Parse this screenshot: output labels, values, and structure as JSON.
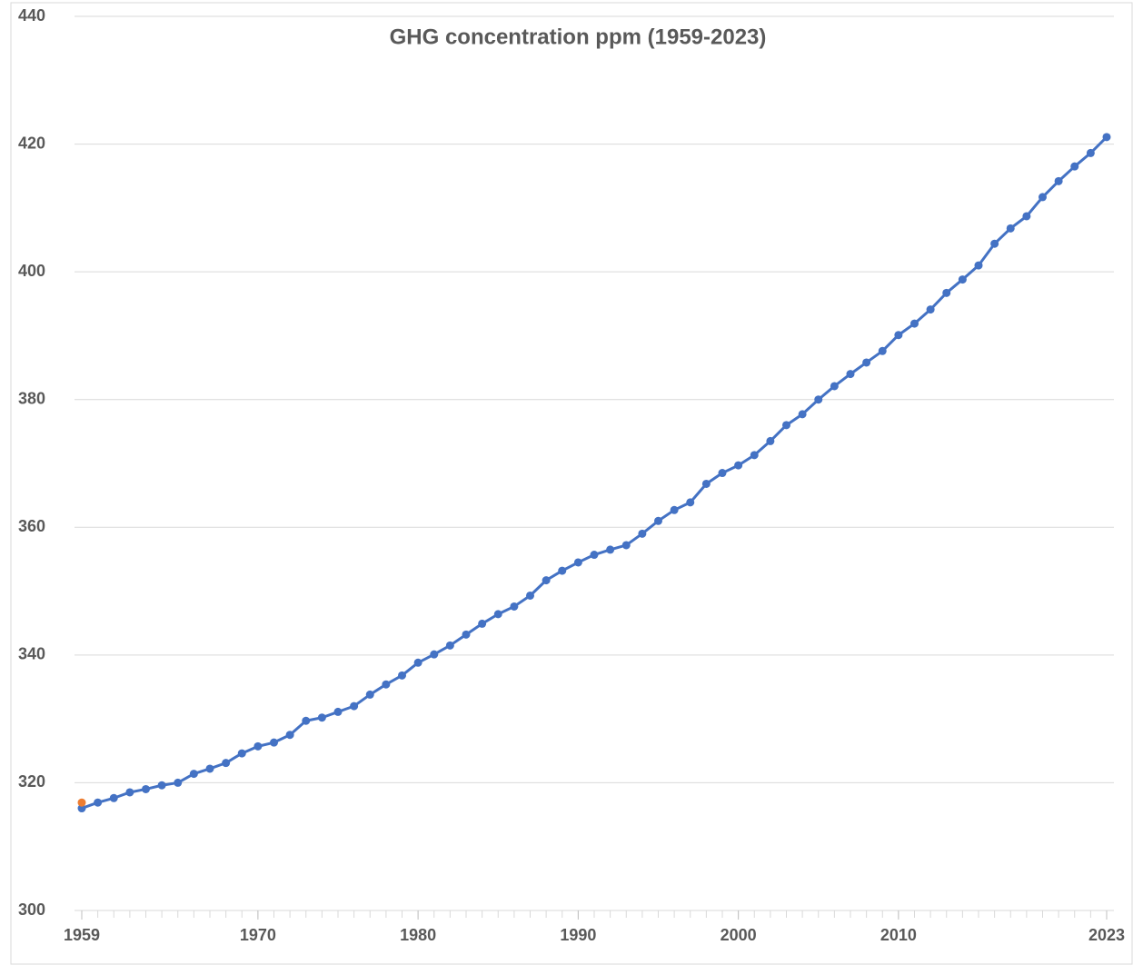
{
  "chart_data": {
    "type": "line",
    "title": "GHG concentration ppm (1959-2023)",
    "x": [
      1959,
      1960,
      1961,
      1962,
      1963,
      1964,
      1965,
      1966,
      1967,
      1968,
      1969,
      1970,
      1971,
      1972,
      1973,
      1974,
      1975,
      1976,
      1977,
      1978,
      1979,
      1980,
      1981,
      1982,
      1983,
      1984,
      1985,
      1986,
      1987,
      1988,
      1989,
      1990,
      1991,
      1992,
      1993,
      1994,
      1995,
      1996,
      1997,
      1998,
      1999,
      2000,
      2001,
      2002,
      2003,
      2004,
      2005,
      2006,
      2007,
      2008,
      2009,
      2010,
      2011,
      2012,
      2013,
      2014,
      2015,
      2016,
      2017,
      2018,
      2019,
      2020,
      2021,
      2022,
      2023
    ],
    "series": [
      {
        "color": "#4472c4",
        "values": [
          316.0,
          316.9,
          317.6,
          318.5,
          319.0,
          319.6,
          320.0,
          321.4,
          322.2,
          323.1,
          324.6,
          325.7,
          326.3,
          327.5,
          329.7,
          330.2,
          331.1,
          332.0,
          333.8,
          335.4,
          336.8,
          338.8,
          340.1,
          341.5,
          343.2,
          344.9,
          346.4,
          347.6,
          349.3,
          351.7,
          353.2,
          354.5,
          355.7,
          356.5,
          357.2,
          359.0,
          361.0,
          362.7,
          363.9,
          366.8,
          368.5,
          369.7,
          371.3,
          373.5,
          376.0,
          377.7,
          380.0,
          382.1,
          384.0,
          385.8,
          387.6,
          390.1,
          391.9,
          394.1,
          396.7,
          398.8,
          401.0,
          404.4,
          406.8,
          408.7,
          411.7,
          414.2,
          416.5,
          418.6,
          421.1
        ]
      },
      {
        "color": "#ed7d31",
        "values": [
          316.9,
          null,
          null,
          null,
          null,
          null,
          null,
          null,
          null,
          null,
          null,
          null,
          null,
          null,
          null,
          null,
          null,
          null,
          null,
          null,
          null,
          null,
          null,
          null,
          null,
          null,
          null,
          null,
          null,
          null,
          null,
          null,
          null,
          null,
          null,
          null,
          null,
          null,
          null,
          null,
          null,
          null,
          null,
          null,
          null,
          null,
          null,
          null,
          null,
          null,
          null,
          null,
          null,
          null,
          null,
          null,
          null,
          null,
          null,
          null,
          null,
          null,
          null,
          null,
          null
        ]
      }
    ],
    "xlim": [
      1959,
      2023
    ],
    "xticks": [
      1959,
      1970,
      1980,
      1990,
      2000,
      2010,
      2023
    ],
    "ylim": [
      300,
      440
    ],
    "yticks": [
      300,
      320,
      340,
      360,
      380,
      400,
      420,
      440
    ],
    "grid": true
  }
}
